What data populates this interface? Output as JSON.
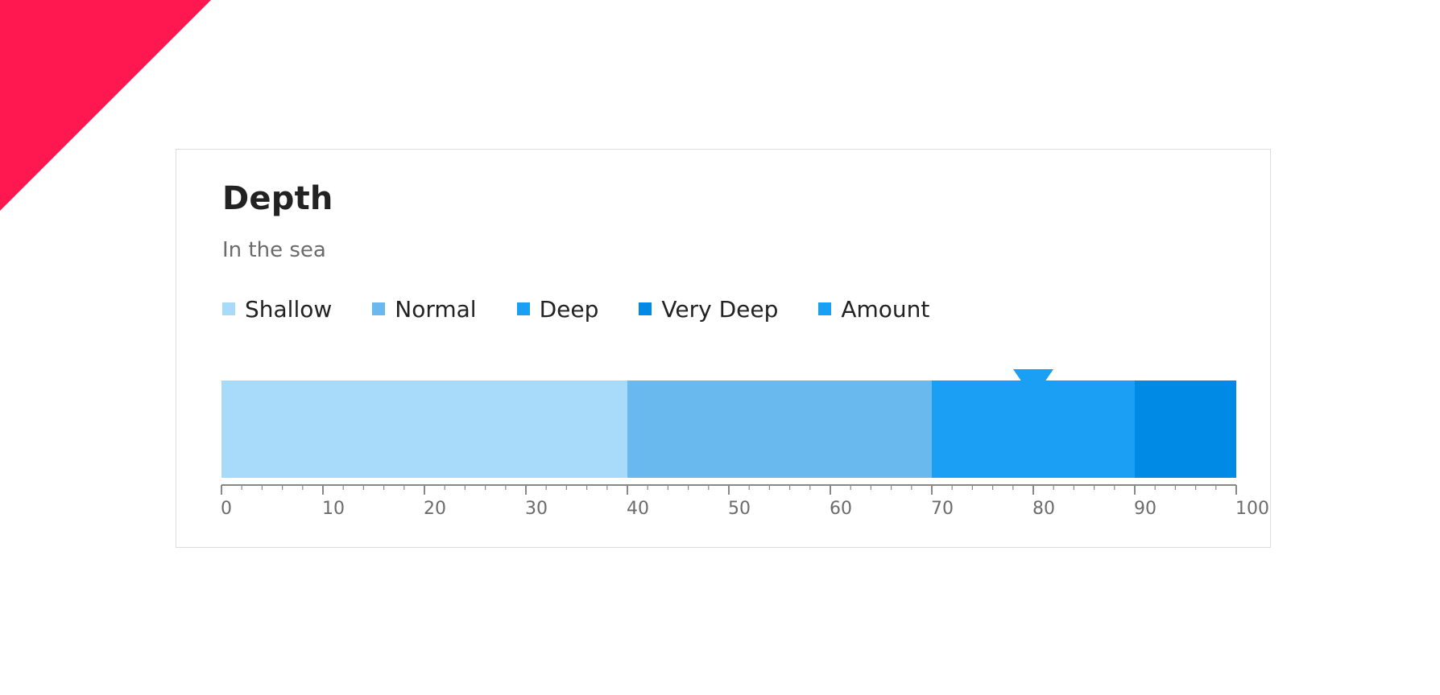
{
  "chart_data": {
    "type": "bar",
    "title": "Depth",
    "subtitle": "In the sea",
    "xlim": [
      0,
      100
    ],
    "ticks": [
      0,
      10,
      20,
      30,
      40,
      50,
      60,
      70,
      80,
      90,
      100
    ],
    "minor_step": 2,
    "ranges": [
      {
        "name": "Shallow",
        "from": 0,
        "to": 40,
        "color": "#a8daf9"
      },
      {
        "name": "Normal",
        "from": 40,
        "to": 70,
        "color": "#69b8ee"
      },
      {
        "name": "Deep",
        "from": 70,
        "to": 90,
        "color": "#1a9ff5"
      },
      {
        "name": "Very Deep",
        "from": 90,
        "to": 100,
        "color": "#008ae6"
      }
    ],
    "target": {
      "name": "Amount",
      "value": 80,
      "color": "#1a9ff5"
    },
    "legend": [
      {
        "label": "Shallow",
        "color": "#a8daf9"
      },
      {
        "label": "Normal",
        "color": "#69b8ee"
      },
      {
        "label": "Deep",
        "color": "#1a9ff5"
      },
      {
        "label": "Very Deep",
        "color": "#008ae6"
      },
      {
        "label": "Amount",
        "color": "#1a9ff5"
      }
    ],
    "axis_color": "#888888",
    "label_color": "#6b6b6b"
  },
  "decor": {
    "ribbon_color": "#ff174f"
  }
}
